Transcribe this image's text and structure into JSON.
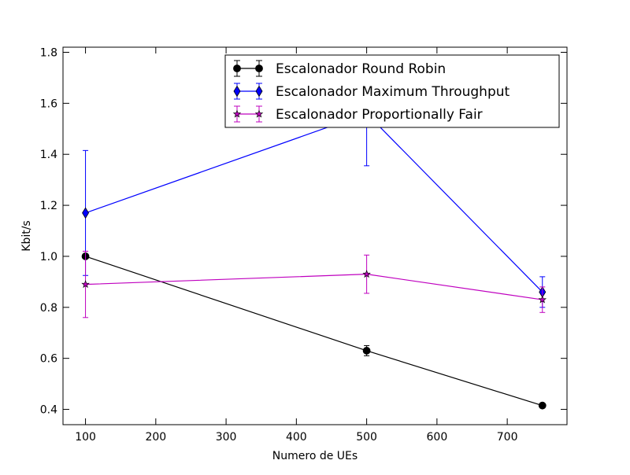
{
  "chart_data": {
    "type": "line",
    "title": "",
    "xlabel": "Numero de UEs",
    "ylabel": "Kbit/s",
    "xlim": [
      68,
      785
    ],
    "ylim": [
      0.34,
      1.82
    ],
    "xticks": [
      100,
      200,
      300,
      400,
      500,
      600,
      700
    ],
    "yticks": [
      0.4,
      0.6,
      0.8,
      1.0,
      1.2,
      1.4,
      1.6,
      1.8
    ],
    "xtick_labels": [
      "100",
      "200",
      "300",
      "400",
      "500",
      "600",
      "700"
    ],
    "ytick_labels": [
      "0.4",
      "0.6",
      "0.8",
      "1.0",
      "1.2",
      "1.4",
      "1.6",
      "1.8"
    ],
    "grid": false,
    "legend_position": "top-right",
    "x": [
      100,
      500,
      750
    ],
    "series": [
      {
        "name": "Escalonador Round Robin",
        "color": "#000000",
        "marker": "circle",
        "values": [
          1.0,
          0.63,
          0.415
        ],
        "error": [
          0.0,
          0.02,
          0.0
        ]
      },
      {
        "name": "Escalonador Maximum Throughput",
        "color": "#0000ff",
        "marker": "diamond",
        "values": [
          1.17,
          1.56,
          0.86
        ],
        "error": [
          0.245,
          0.205,
          0.06
        ]
      },
      {
        "name": "Escalonador Proportionally Fair",
        "color": "#bf00bf",
        "marker": "star",
        "values": [
          0.89,
          0.93,
          0.83
        ],
        "error": [
          0.13,
          0.075,
          0.05
        ]
      }
    ]
  }
}
